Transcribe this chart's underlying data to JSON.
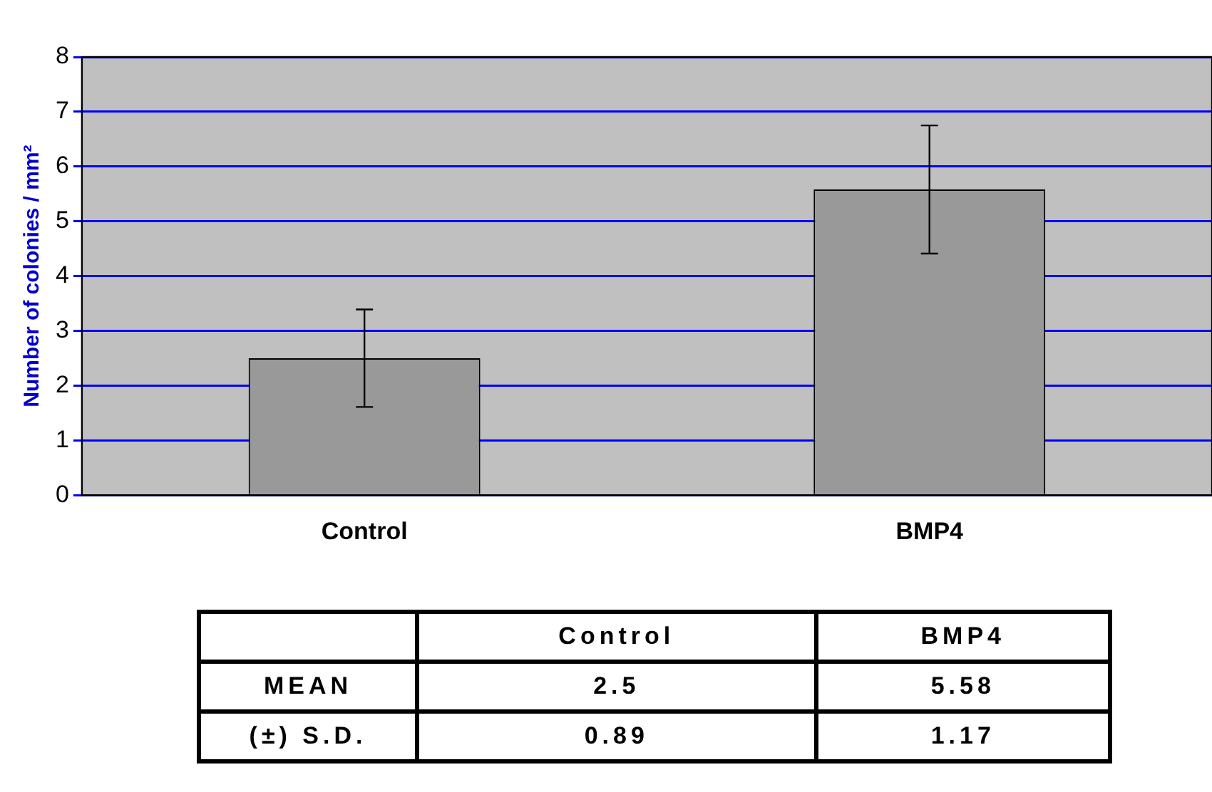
{
  "chart_data": {
    "type": "bar",
    "ylabel": "Number of colonies / mm²",
    "categories": [
      "Control",
      "BMP4"
    ],
    "values": [
      2.5,
      5.58
    ],
    "errors": [
      0.89,
      1.17
    ],
    "color": "#999999",
    "ylim": [
      0,
      8
    ],
    "yticks": [
      0,
      1,
      2,
      3,
      4,
      5,
      6,
      7,
      8
    ],
    "grid": "y",
    "data_labels": true,
    "annotations": [
      "MEAN",
      "(±) S.D.",
      "0.89",
      "1.17"
    ]
  }
}
